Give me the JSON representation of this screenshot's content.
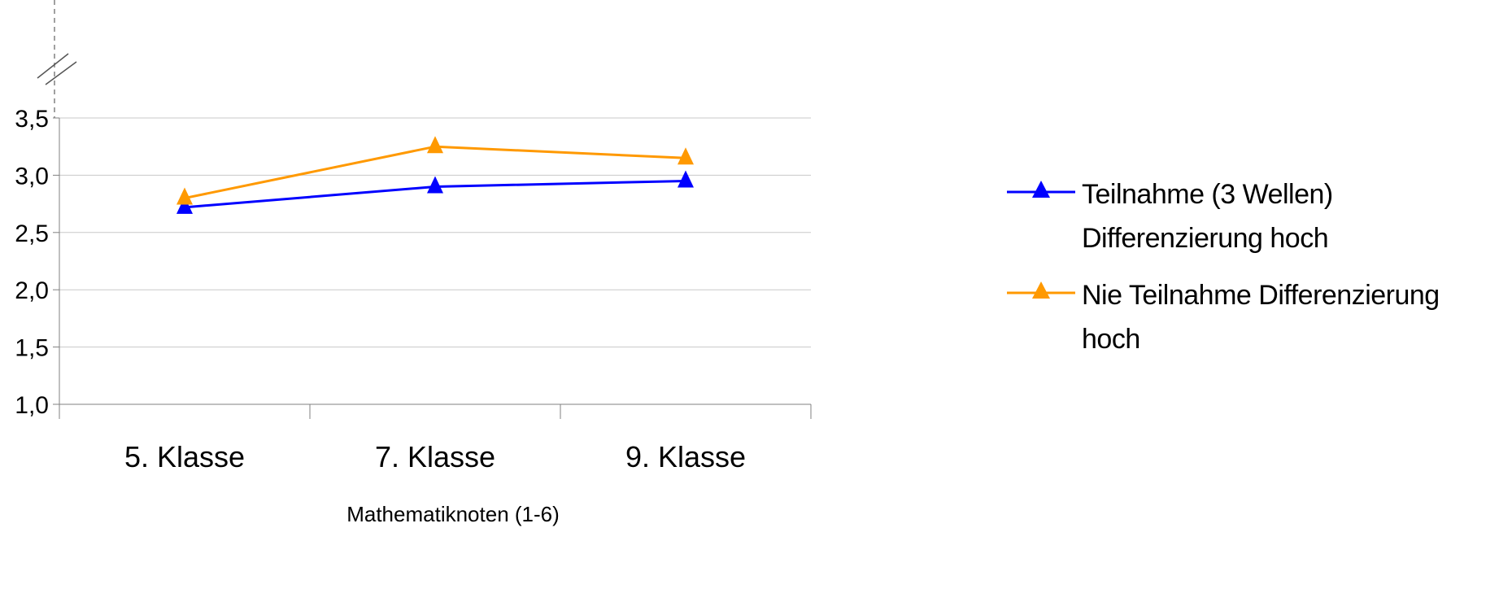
{
  "chart_data": {
    "type": "line",
    "categories": [
      "5. Klasse",
      "7. Klasse",
      "9. Klasse"
    ],
    "xlabel": "Mathematiknoten (1-6)",
    "ylabel": "",
    "ylim": [
      1.0,
      3.5
    ],
    "y_ticks": [
      "1,0",
      "1,5",
      "2,0",
      "2,5",
      "3,0",
      "3,5"
    ],
    "y_tick_values": [
      1.0,
      1.5,
      2.0,
      2.5,
      3.0,
      3.5
    ],
    "axis_break": true,
    "grid": "horizontal",
    "legend_position": "right",
    "series": [
      {
        "name": "Teilnahme  (3 Wellen) Differenzierung hoch",
        "values": [
          2.72,
          2.9,
          2.95
        ],
        "color": "#0000ff",
        "marker": "triangle"
      },
      {
        "name": "Nie Teilnahme Differenzierung hoch",
        "values": [
          2.8,
          3.25,
          3.15
        ],
        "color": "#ff9900",
        "marker": "triangle"
      }
    ]
  },
  "legend": {
    "items": [
      {
        "line1": "Teilnahme  (3 Wellen)",
        "line2": "Differenzierung hoch",
        "color": "#0000ff"
      },
      {
        "line1": "Nie Teilnahme Differenzierung",
        "line2": "hoch",
        "color": "#ff9900"
      }
    ]
  }
}
